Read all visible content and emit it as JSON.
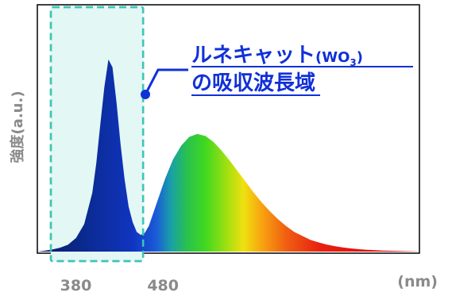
{
  "chart_data": {
    "type": "area",
    "title": "",
    "xlabel": "(nm)",
    "ylabel": "強度(a.u.)",
    "xlim": [
      352,
      825
    ],
    "ylim": [
      0,
      1
    ],
    "x_ticks": [
      380,
      480
    ],
    "grid": false,
    "series": [
      {
        "x": [
          352,
          360,
          370,
          380,
          390,
          400,
          410,
          420,
          425,
          430,
          435,
          440,
          445,
          450,
          455,
          460,
          465,
          470,
          475,
          480,
          485,
          490,
          495,
          500,
          505,
          510,
          520,
          530,
          540,
          550,
          560,
          570,
          580,
          590,
          600,
          610,
          620,
          630,
          640,
          650,
          660,
          670,
          680,
          690,
          700,
          710,
          720,
          730,
          740,
          750,
          760,
          770,
          780,
          790,
          800,
          810,
          820,
          825
        ],
        "y": [
          0.0,
          0.004,
          0.01,
          0.02,
          0.035,
          0.07,
          0.14,
          0.3,
          0.45,
          0.65,
          0.84,
          0.98,
          0.94,
          0.76,
          0.55,
          0.37,
          0.23,
          0.15,
          0.1,
          0.085,
          0.095,
          0.13,
          0.19,
          0.25,
          0.31,
          0.37,
          0.47,
          0.54,
          0.585,
          0.6,
          0.59,
          0.56,
          0.515,
          0.465,
          0.41,
          0.355,
          0.3,
          0.25,
          0.205,
          0.165,
          0.13,
          0.1,
          0.08,
          0.06,
          0.047,
          0.036,
          0.028,
          0.021,
          0.016,
          0.012,
          0.009,
          0.007,
          0.005,
          0.004,
          0.003,
          0.002,
          0.001,
          0.0
        ]
      }
    ],
    "highlight_band": {
      "x_start": 352,
      "x_end": 480,
      "fill": "#e3f7f4",
      "stroke": "#3cc6b6"
    },
    "annotation": {
      "line1": "ルネキャット",
      "line1_paren_open": "(",
      "line1_formula": "WO",
      "line1_subscript": "3",
      "line1_paren_close": ")",
      "line2": "の吸収波長域",
      "color": "#1030d8"
    }
  }
}
